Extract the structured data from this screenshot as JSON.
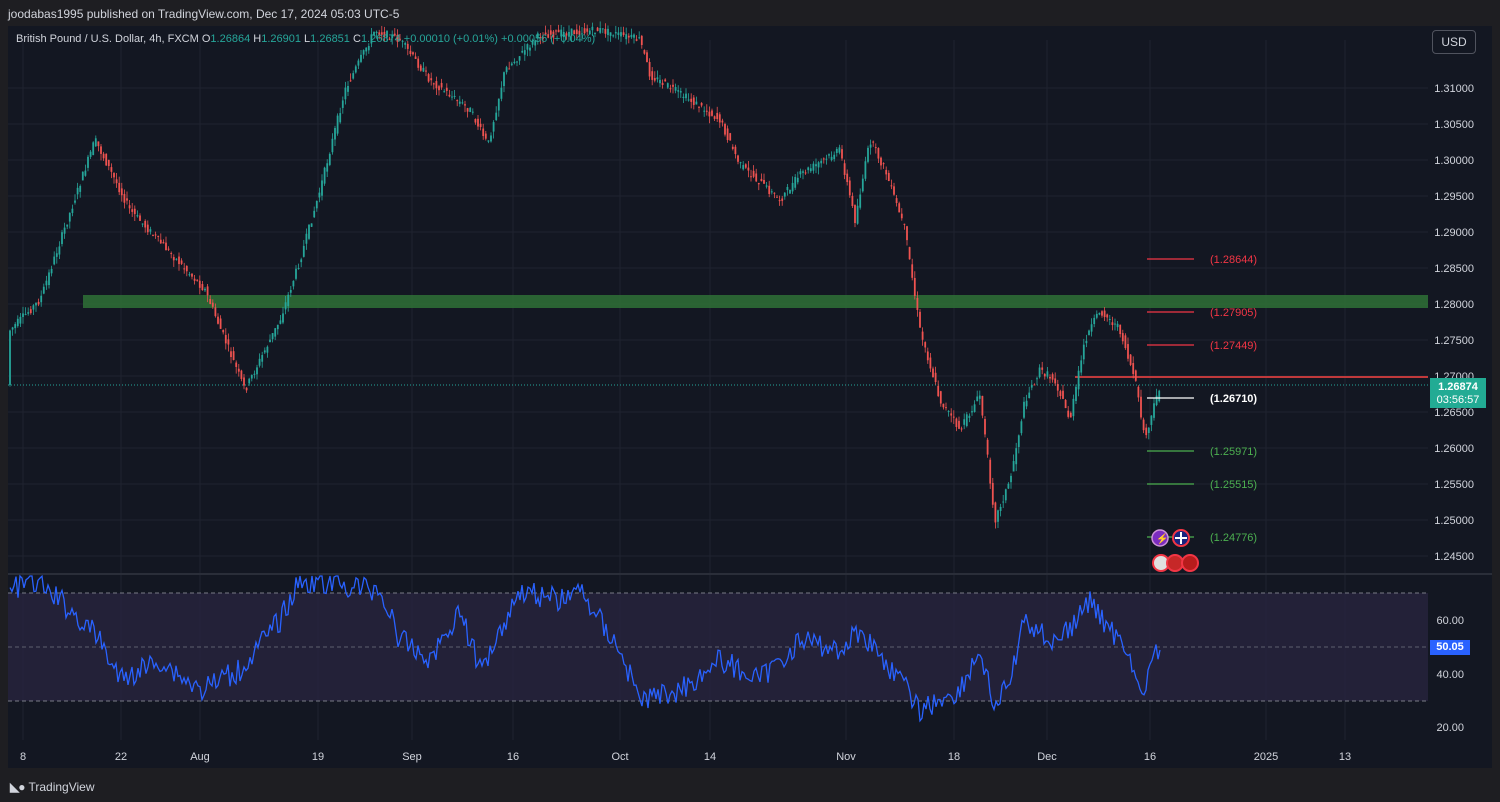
{
  "header": {
    "published": "joodabas1995 published on TradingView.com, Dec 17, 2024 05:03 UTC-5"
  },
  "legend": {
    "symbol": "British Pound / U.S. Dollar, 4h, FXCM",
    "o_label": "O",
    "o": "1.26864",
    "h_label": "H",
    "h": "1.26901",
    "l_label": "L",
    "l": "1.26851",
    "c_label": "C",
    "c": "1.26874",
    "change": "+0.00010 (+0.01%)",
    "change2": "+0.00056 (+0.04%)"
  },
  "currency_button": "USD",
  "price_axis": {
    "labels": [
      "1.31000",
      "1.30500",
      "1.30000",
      "1.29500",
      "1.29000",
      "1.28500",
      "1.28000",
      "1.27500",
      "1.27000",
      "1.26500",
      "1.26000",
      "1.25500",
      "1.25000",
      "1.24500"
    ],
    "current_price": "1.26874",
    "countdown": "03:56:57"
  },
  "rsi_axis": {
    "labels": [
      "60.00",
      "40.00",
      "20.00"
    ],
    "current": "50.05"
  },
  "levels": [
    {
      "label": "(1.28644)",
      "color": "#f23645"
    },
    {
      "label": "(1.27905)",
      "color": "#f23645"
    },
    {
      "label": "(1.27449)",
      "color": "#f23645"
    },
    {
      "label": "(1.26710)",
      "color": "#ffffff"
    },
    {
      "label": "(1.25971)",
      "color": "#4caf50"
    },
    {
      "label": "(1.25515)",
      "color": "#4caf50"
    },
    {
      "label": "(1.24776)",
      "color": "#4caf50"
    }
  ],
  "time_axis": {
    "labels": [
      "8",
      "22",
      "Aug",
      "19",
      "Sep",
      "16",
      "Oct",
      "14",
      "Nov",
      "18",
      "Dec",
      "16",
      "2025",
      "13"
    ]
  },
  "footer": {
    "brand": "TradingView"
  },
  "colors": {
    "up": "#26a69a",
    "down": "#ef5350",
    "zone": "#2e6b35",
    "resistance": "#c0393b",
    "rsi_line": "#2962ff",
    "rsi_band": "#2a2540"
  },
  "icons": [
    "lightning-event-icon",
    "uk-flag-icon",
    "us-flag-icon",
    "event-cluster-icon"
  ]
}
